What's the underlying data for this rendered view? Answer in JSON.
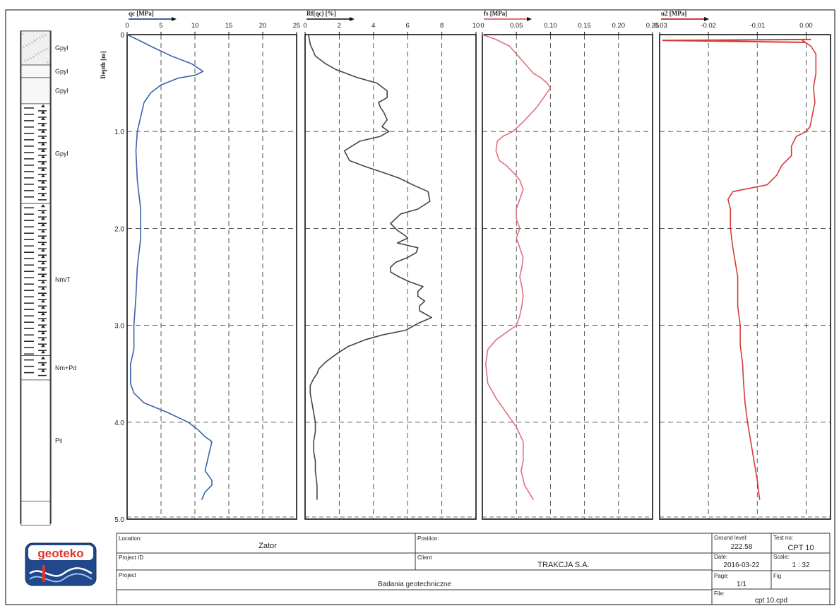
{
  "chart_data": {
    "type": "line",
    "ylabel": "Depth [m]",
    "y_ticks": [
      "0",
      "1.0",
      "2.0",
      "3.0",
      "4.0",
      "5.0"
    ],
    "ylim": [
      0,
      5
    ],
    "grid": true,
    "panels": [
      {
        "id": "qc",
        "xlabel": "qc [MPa]",
        "xlim": [
          0,
          25
        ],
        "ticks": [
          "0",
          "5",
          "10",
          "15",
          "20",
          "25"
        ],
        "color": "#3a64a8",
        "series": {
          "x": [
            0.0,
            1.5,
            3.5,
            6.5,
            9.5,
            11.2,
            10.0,
            7.5,
            5.0,
            3.5,
            2.5,
            2.0,
            1.5,
            1.3,
            1.5,
            2.0,
            2.0,
            1.5,
            1.3,
            1.0,
            1.0,
            1.0,
            0.5,
            0.5,
            1.0,
            2.5,
            6.0,
            9.0,
            10.5,
            11.5,
            12.5,
            12.0,
            11.5,
            12.5,
            12.5,
            11.5,
            11.0
          ],
          "y": [
            0.0,
            0.05,
            0.12,
            0.22,
            0.3,
            0.38,
            0.42,
            0.45,
            0.52,
            0.6,
            0.7,
            0.85,
            1.0,
            1.2,
            1.5,
            1.8,
            2.1,
            2.4,
            2.7,
            3.0,
            3.15,
            3.25,
            3.4,
            3.6,
            3.7,
            3.8,
            3.9,
            4.0,
            4.08,
            4.15,
            4.2,
            4.35,
            4.5,
            4.6,
            4.65,
            4.72,
            4.8
          ]
        }
      },
      {
        "id": "rf",
        "xlabel": "Rf(qc) [%]",
        "xlim": [
          0,
          10
        ],
        "ticks": [
          "0",
          "2",
          "4",
          "6",
          "8",
          "10"
        ],
        "color": "#444444",
        "series": {
          "x": [
            0.2,
            0.3,
            0.6,
            1.2,
            1.8,
            3.0,
            4.2,
            4.8,
            4.8,
            4.3,
            4.4,
            4.6,
            4.8,
            4.5,
            4.9,
            4.4,
            3.2,
            2.3,
            2.6,
            3.5,
            4.5,
            5.5,
            6.3,
            7.2,
            7.3,
            6.6,
            5.6,
            5.0,
            5.4,
            5.9,
            6.0,
            5.4,
            6.6,
            6.5,
            6.0,
            5.3,
            5.0,
            5.0,
            5.5,
            6.1,
            6.9,
            6.6,
            6.6,
            7.0,
            6.7,
            6.7,
            7.4,
            6.6,
            5.9,
            4.5,
            3.5,
            2.5,
            1.8,
            1.2,
            0.8,
            0.7,
            0.5,
            0.3,
            0.3,
            0.4,
            0.5,
            0.6,
            0.6,
            0.5,
            0.5,
            0.6,
            0.6,
            0.7,
            0.7
          ],
          "y": [
            0.0,
            0.1,
            0.22,
            0.3,
            0.36,
            0.44,
            0.5,
            0.58,
            0.65,
            0.7,
            0.75,
            0.8,
            0.88,
            0.95,
            1.0,
            1.05,
            1.1,
            1.2,
            1.3,
            1.36,
            1.42,
            1.48,
            1.55,
            1.62,
            1.72,
            1.8,
            1.85,
            1.95,
            2.02,
            2.08,
            2.1,
            2.15,
            2.2,
            2.25,
            2.3,
            2.35,
            2.4,
            2.45,
            2.5,
            2.55,
            2.6,
            2.65,
            2.7,
            2.75,
            2.8,
            2.85,
            2.92,
            2.98,
            3.05,
            3.1,
            3.15,
            3.22,
            3.3,
            3.38,
            3.45,
            3.5,
            3.55,
            3.62,
            3.7,
            3.8,
            3.9,
            4.0,
            4.1,
            4.2,
            4.3,
            4.4,
            4.5,
            4.65,
            4.8
          ]
        }
      },
      {
        "id": "fs",
        "xlabel": "fs [MPa]",
        "xlim": [
          0,
          0.25
        ],
        "ticks": [
          "0",
          "0.05",
          "0.10",
          "0.15",
          "0.20",
          "0.25"
        ],
        "color": "#e0707f",
        "series": {
          "x": [
            0.0,
            0.02,
            0.04,
            0.05,
            0.06,
            0.065,
            0.07,
            0.075,
            0.085,
            0.095,
            0.1,
            0.09,
            0.08,
            0.06,
            0.045,
            0.03,
            0.022,
            0.02,
            0.025,
            0.035,
            0.045,
            0.055,
            0.06,
            0.055,
            0.05,
            0.05,
            0.055,
            0.05,
            0.055,
            0.06,
            0.058,
            0.055,
            0.058,
            0.06,
            0.058,
            0.055,
            0.05,
            0.04,
            0.03,
            0.02,
            0.008,
            0.005,
            0.008,
            0.02,
            0.035,
            0.05,
            0.06,
            0.06,
            0.057,
            0.062,
            0.075
          ],
          "y": [
            0.0,
            0.05,
            0.12,
            0.2,
            0.28,
            0.32,
            0.36,
            0.4,
            0.44,
            0.5,
            0.55,
            0.65,
            0.75,
            0.9,
            1.0,
            1.05,
            1.1,
            1.2,
            1.3,
            1.35,
            1.42,
            1.5,
            1.6,
            1.7,
            1.8,
            1.9,
            2.0,
            2.1,
            2.2,
            2.3,
            2.4,
            2.5,
            2.6,
            2.7,
            2.8,
            2.9,
            3.0,
            3.05,
            3.1,
            3.15,
            3.25,
            3.4,
            3.6,
            3.75,
            3.9,
            4.05,
            4.2,
            4.4,
            4.5,
            4.65,
            4.8
          ]
        }
      },
      {
        "id": "u2",
        "xlabel": "u2 [MPa]",
        "xlim": [
          -0.03,
          0.005
        ],
        "ticks": [
          "-0.03",
          "-0.02",
          "-0.01",
          "0.00"
        ],
        "color": "#d43b3b",
        "series": {
          "x": [
            -0.001,
            0.001,
            0.002,
            0.002,
            0.0015,
            0.0018,
            0.0012,
            0.0008,
            0.0,
            -0.002,
            -0.003,
            -0.003,
            -0.005,
            -0.006,
            -0.007,
            -0.008,
            -0.011,
            -0.015,
            -0.016,
            -0.0155,
            -0.0155,
            -0.015,
            -0.014,
            -0.014,
            -0.0135,
            -0.0135,
            -0.013,
            -0.0128,
            -0.0125,
            -0.012,
            -0.011,
            -0.01,
            -0.0095
          ],
          "y": [
            0.05,
            0.12,
            0.2,
            0.4,
            0.55,
            0.7,
            0.85,
            0.95,
            1.0,
            1.05,
            1.15,
            1.25,
            1.35,
            1.45,
            1.5,
            1.55,
            1.58,
            1.62,
            1.7,
            1.8,
            2.0,
            2.2,
            2.5,
            2.8,
            3.0,
            3.2,
            3.4,
            3.6,
            3.8,
            4.0,
            4.3,
            4.6,
            4.8
          ]
        }
      }
    ]
  },
  "profile": {
    "layers": [
      {
        "label": "Gpyl",
        "top": 0.0,
        "bottom": 0.35
      },
      {
        "label": "Gpyl",
        "top": 0.35,
        "bottom": 0.48
      },
      {
        "label": "Gpyl",
        "top": 0.48,
        "bottom": 0.75
      },
      {
        "label": "Gpyl",
        "top": 0.75,
        "bottom": 1.78
      },
      {
        "label": "Nm/T",
        "top": 1.78,
        "bottom": 3.35
      },
      {
        "label": "Nm+Pd",
        "top": 3.35,
        "bottom": 3.6
      },
      {
        "label": "Ps",
        "top": 3.6,
        "bottom": 4.85
      },
      {
        "label": "",
        "top": 4.85,
        "bottom": 5.1
      }
    ]
  },
  "title_block": {
    "logo_text": "geoteko",
    "location_label": "Location:",
    "location_value": "Zator",
    "position_label": "Position:",
    "position_value": "",
    "project_id_label": "Project ID",
    "project_id_value": "",
    "client_label": "Client",
    "client_value": "TRAKCJA S.A.",
    "project_label": "Project",
    "project_value": "Badania geotechniczne",
    "ground_level_label": "Ground level:",
    "ground_level_value": "222.58",
    "test_no_label": "Test no:",
    "test_no_value": "CPT 10",
    "date_label": "Date:",
    "date_value": "2016-03-22",
    "scale_label": "Scale:",
    "scale_value": "1 : 32",
    "page_label": "Page:",
    "page_value": "1/1",
    "fig_label": "Fig",
    "fig_value": "",
    "file_label": "File:",
    "file_value": "cpt 10.cpd"
  }
}
